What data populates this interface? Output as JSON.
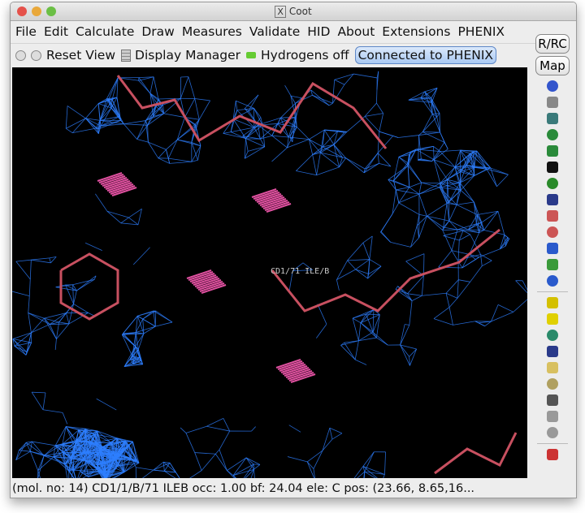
{
  "window": {
    "title": "Coot",
    "title_icon": "x11-icon"
  },
  "menu": [
    "File",
    "Edit",
    "Calculate",
    "Draw",
    "Measures",
    "Validate",
    "HID",
    "About",
    "Extensions",
    "PHENIX"
  ],
  "toolbar": {
    "reset_view": "Reset View",
    "display_manager": "Display Manager",
    "hydrogens": "Hydrogens off",
    "phenix": "Connected to PHENIX"
  },
  "side": {
    "rrc": "R/RC",
    "map": "Map",
    "icons": [
      "sphere-refine-icon",
      "rotate-translate-icon",
      "torsion-icon",
      "rigid-body-fit-icon",
      "chain-refine-icon",
      "triangle-arrow-icon",
      "auto-fit-rotamer-icon",
      "rotamer-icon",
      "edit-chi-icon",
      "regularize-icon",
      "flip-peptide-icon",
      "side-chain-180-icon",
      "cis-trans-icon",
      "add-terminal-residue-icon",
      "radioactive-icon",
      "add-atom-icon",
      "place-atom-icon",
      "add-alt-conf-icon",
      "mutate-icon",
      "delete-icon",
      "undo-icon",
      "redo-icon",
      "flag-icon"
    ]
  },
  "canvas": {
    "atom_label": "CD1/71 ILE/B",
    "background": "#000000",
    "map_color": "#2e7fff",
    "bond_color": "#c85060"
  },
  "status": "(mol. no: 14)  CD1/1/B/71 ILEB occ:  1.00 bf: 24.04 ele:  C pos: (23.66, 8.65,16..."
}
